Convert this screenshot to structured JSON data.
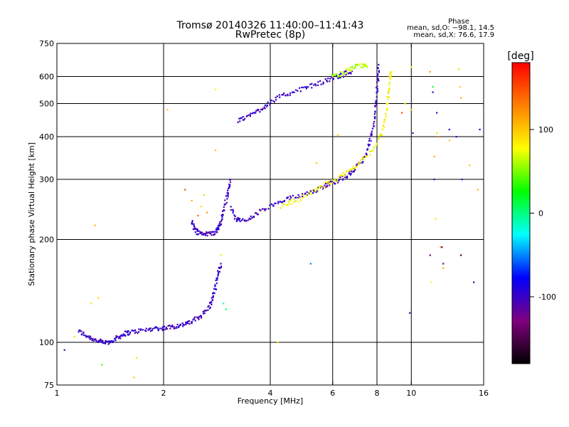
{
  "chart_data": {
    "type": "scatter",
    "title": "Tromsø 20140326 11:40:00–11:41:43",
    "subtitle": "RwPretec (8p)",
    "xlabel": "Frequency [MHz]",
    "ylabel": "Stationary phase Virtual Height [km]",
    "x_scale": "log",
    "y_scale": "log",
    "xlim": [
      1,
      16
    ],
    "ylim": [
      75,
      750
    ],
    "x_ticks": [
      1,
      2,
      4,
      6,
      8,
      10,
      16
    ],
    "y_ticks": [
      75,
      100,
      200,
      300,
      400,
      500,
      600,
      750
    ],
    "x_grid": [
      2,
      4,
      6,
      8,
      10
    ],
    "y_grid": [
      100,
      200,
      300,
      400,
      500,
      600
    ],
    "grid": true,
    "phase_stats": {
      "heading": "Phase",
      "line1": "mean, sd,O: −98.1, 14.5",
      "line2": "mean, sd,X:  76.6, 17.9"
    },
    "colorbar": {
      "unit": "[deg]",
      "min": -180,
      "max": 180,
      "ticks": [
        100,
        0,
        -100
      ],
      "colors": [
        "#ff0000",
        "#ff8000",
        "#ffff00",
        "#00ff00",
        "#00ffff",
        "#0000ff",
        "#800080",
        "#000000"
      ]
    },
    "series": [
      {
        "kind": "trace",
        "color_phase": -100,
        "points": [
          [
            1.15,
            108
          ],
          [
            1.2,
            105
          ],
          [
            1.25,
            103
          ],
          [
            1.3,
            101
          ],
          [
            1.35,
            100
          ],
          [
            1.4,
            100
          ],
          [
            1.45,
            102
          ],
          [
            1.5,
            104
          ],
          [
            1.55,
            106
          ],
          [
            1.6,
            107
          ],
          [
            1.7,
            108
          ],
          [
            1.8,
            109
          ],
          [
            1.9,
            110
          ],
          [
            2.0,
            110
          ],
          [
            2.1,
            111
          ],
          [
            2.2,
            112
          ],
          [
            2.3,
            113
          ],
          [
            2.4,
            115
          ],
          [
            2.5,
            118
          ],
          [
            2.6,
            122
          ],
          [
            2.7,
            128
          ],
          [
            2.75,
            135
          ],
          [
            2.8,
            145
          ],
          [
            2.85,
            160
          ],
          [
            2.9,
            170
          ]
        ]
      },
      {
        "kind": "trace",
        "color_phase": -100,
        "points": [
          [
            2.4,
            225
          ],
          [
            2.45,
            215
          ],
          [
            2.5,
            210
          ],
          [
            2.6,
            208
          ],
          [
            2.7,
            208
          ],
          [
            2.8,
            210
          ],
          [
            2.85,
            215
          ],
          [
            2.9,
            225
          ],
          [
            2.95,
            240
          ],
          [
            3.0,
            260
          ],
          [
            3.05,
            280
          ],
          [
            3.08,
            300
          ]
        ]
      },
      {
        "kind": "trace",
        "color_phase": -100,
        "points": [
          [
            3.1,
            250
          ],
          [
            3.2,
            230
          ],
          [
            3.3,
            227
          ],
          [
            3.5,
            230
          ],
          [
            3.7,
            240
          ],
          [
            4.0,
            250
          ],
          [
            4.3,
            258
          ],
          [
            4.6,
            265
          ],
          [
            5.0,
            272
          ],
          [
            5.3,
            278
          ],
          [
            5.6,
            285
          ],
          [
            5.9,
            292
          ],
          [
            6.2,
            298
          ],
          [
            6.5,
            305
          ],
          [
            6.8,
            315
          ],
          [
            7.1,
            330
          ],
          [
            7.4,
            350
          ],
          [
            7.6,
            380
          ],
          [
            7.8,
            420
          ],
          [
            7.9,
            470
          ],
          [
            8.0,
            540
          ],
          [
            8.05,
            600
          ],
          [
            8.08,
            650
          ]
        ]
      },
      {
        "kind": "trace",
        "color_phase": 80,
        "points": [
          [
            4.3,
            250
          ],
          [
            4.6,
            258
          ],
          [
            5.0,
            268
          ],
          [
            5.4,
            280
          ],
          [
            5.8,
            292
          ],
          [
            6.2,
            302
          ],
          [
            6.6,
            315
          ],
          [
            7.0,
            332
          ],
          [
            7.5,
            350
          ],
          [
            8.0,
            380
          ],
          [
            8.3,
            420
          ],
          [
            8.5,
            470
          ],
          [
            8.6,
            530
          ],
          [
            8.7,
            590
          ],
          [
            8.75,
            620
          ]
        ]
      },
      {
        "kind": "trace",
        "color_phase": -100,
        "points": [
          [
            3.25,
            445
          ],
          [
            3.4,
            455
          ],
          [
            3.6,
            470
          ],
          [
            3.8,
            485
          ],
          [
            4.0,
            505
          ],
          [
            4.3,
            525
          ],
          [
            4.6,
            540
          ],
          [
            5.0,
            555
          ],
          [
            5.4,
            570
          ],
          [
            5.8,
            585
          ],
          [
            6.2,
            600
          ],
          [
            6.5,
            612
          ],
          [
            6.8,
            622
          ]
        ]
      },
      {
        "kind": "trace",
        "color_phase": 60,
        "points": [
          [
            6.0,
            600
          ],
          [
            6.3,
            610
          ],
          [
            6.6,
            625
          ],
          [
            6.9,
            640
          ],
          [
            7.3,
            645
          ],
          [
            7.5,
            640
          ]
        ]
      },
      {
        "kind": "scatter",
        "points": [
          [
            1.05,
            95,
            -100
          ],
          [
            1.12,
            104,
            90
          ],
          [
            1.25,
            130,
            90
          ],
          [
            1.28,
            220,
            110
          ],
          [
            1.31,
            135,
            95
          ],
          [
            1.34,
            86,
            40
          ],
          [
            1.65,
            79,
            100
          ],
          [
            1.68,
            90,
            90
          ],
          [
            2.05,
            480,
            100
          ],
          [
            2.3,
            280,
            150
          ],
          [
            2.4,
            260,
            110
          ],
          [
            2.5,
            235,
            140
          ],
          [
            2.55,
            250,
            90
          ],
          [
            2.6,
            270,
            60
          ],
          [
            2.65,
            240,
            120
          ],
          [
            2.8,
            550,
            80
          ],
          [
            2.8,
            365,
            100
          ],
          [
            2.9,
            180,
            70
          ],
          [
            2.95,
            130,
            -20
          ],
          [
            3.0,
            125,
            10
          ],
          [
            4.2,
            100,
            90
          ],
          [
            5.2,
            170,
            -50
          ],
          [
            5.4,
            335,
            100
          ],
          [
            6.2,
            405,
            90
          ],
          [
            6.0,
            600,
            80
          ],
          [
            10.0,
            480,
            100
          ],
          [
            10.1,
            410,
            -100
          ],
          [
            10.0,
            640,
            80
          ],
          [
            9.9,
            122,
            -100
          ],
          [
            9.6,
            500,
            90
          ],
          [
            9.4,
            470,
            150
          ],
          [
            11.3,
            620,
            120
          ],
          [
            11.3,
            180,
            -140
          ],
          [
            11.4,
            150,
            80
          ],
          [
            11.5,
            560,
            20
          ],
          [
            11.5,
            540,
            -100
          ],
          [
            11.6,
            350,
            110
          ],
          [
            11.6,
            300,
            -100
          ],
          [
            11.7,
            230,
            90
          ],
          [
            11.8,
            470,
            -100
          ],
          [
            11.8,
            410,
            60
          ],
          [
            11.9,
            400,
            130
          ],
          [
            12.1,
            190,
            120
          ],
          [
            12.2,
            190,
            -130
          ],
          [
            12.3,
            165,
            110
          ],
          [
            12.3,
            170,
            -120
          ],
          [
            12.8,
            420,
            -80
          ],
          [
            12.8,
            390,
            100
          ],
          [
            13.4,
            400,
            -100
          ],
          [
            13.6,
            630,
            90
          ],
          [
            13.7,
            560,
            100
          ],
          [
            13.8,
            520,
            110
          ],
          [
            13.8,
            180,
            -150
          ],
          [
            13.9,
            300,
            -100
          ],
          [
            14.6,
            330,
            100
          ],
          [
            15.0,
            150,
            -100
          ],
          [
            15.4,
            280,
            110
          ],
          [
            15.6,
            420,
            -80
          ]
        ]
      }
    ]
  }
}
